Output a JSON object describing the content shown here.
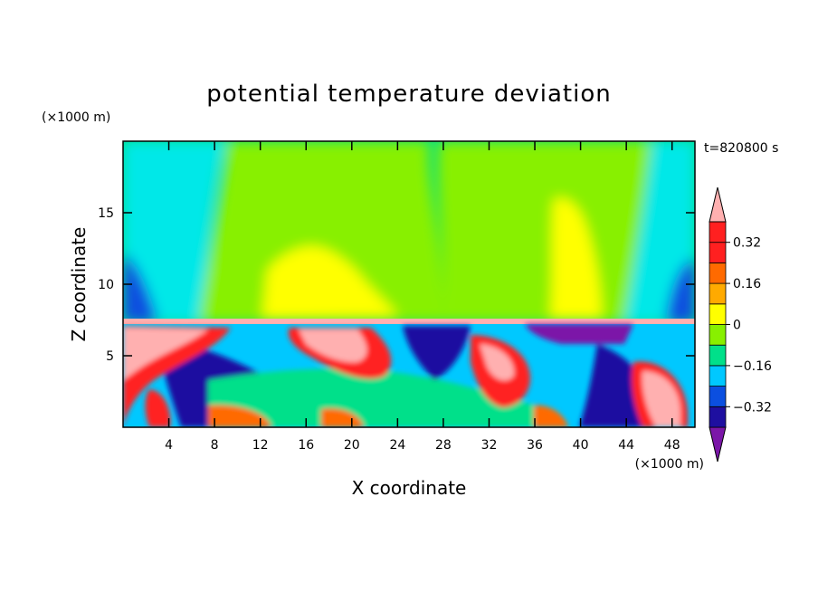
{
  "chart_data": {
    "type": "heatmap",
    "title": "potential temperature deviation",
    "time_label": "t=820800 s",
    "xlabel": "X coordinate",
    "ylabel": "Z coordinate",
    "x_unit": "(×1000 m)",
    "y_unit": "(×1000 m)",
    "xlim": [
      0,
      50
    ],
    "ylim": [
      0,
      20
    ],
    "x_ticks": [
      "4",
      "8",
      "12",
      "16",
      "20",
      "24",
      "28",
      "32",
      "36",
      "40",
      "44",
      "48"
    ],
    "x_tick_values": [
      4,
      8,
      12,
      16,
      20,
      24,
      28,
      32,
      36,
      40,
      44,
      48
    ],
    "y_ticks": [
      "5",
      "10",
      "15"
    ],
    "y_tick_values": [
      5,
      10,
      15
    ],
    "colorbar": {
      "levels": [
        -0.4,
        -0.32,
        -0.24,
        -0.16,
        -0.08,
        0,
        0.08,
        0.16,
        0.24,
        0.32,
        0.4
      ],
      "tick_labels": [
        "0.32",
        "0.16",
        "0",
        "−0.16",
        "−0.32"
      ],
      "tick_values": [
        0.32,
        0.16,
        0,
        -0.16,
        -0.32
      ],
      "colors": [
        "#7b16a8",
        "#1e0fa0",
        "#0b4fe0",
        "#00c8ff",
        "#00e08a",
        "#88f000",
        "#ffff00",
        "#ffaa00",
        "#ff6a00",
        "#ff2020",
        "#ffb0b0"
      ],
      "extend": "both"
    },
    "colors": {
      "inversion_layer": "#ffb0b0",
      "lower_background": "#00c8ff",
      "upper_background": "#00e08a"
    }
  }
}
